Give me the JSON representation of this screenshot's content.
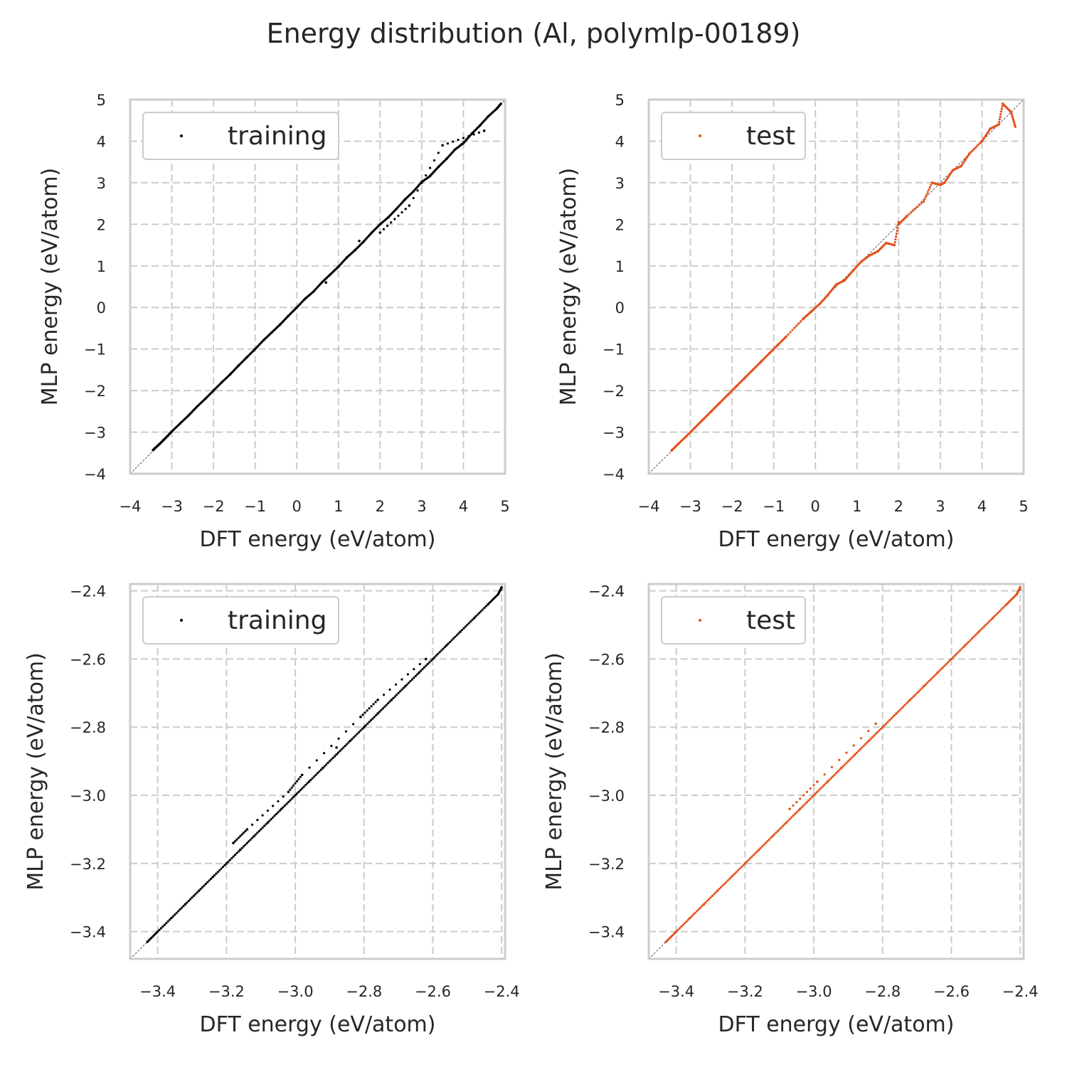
{
  "figure": {
    "title": "Energy distribution (Al, polymlp-00189)",
    "colors": {
      "training": "#000000",
      "test": "#e6501a",
      "grid": "#cccccc",
      "diagonal": "#555555"
    }
  },
  "chart_data": [
    {
      "type": "scatter",
      "xlabel": "DFT energy (eV/atom)",
      "ylabel": "MLP energy (eV/atom)",
      "xlim": [
        -4,
        5
      ],
      "ylim": [
        -4,
        5
      ],
      "xticks": [
        -4,
        -3,
        -2,
        -1,
        0,
        1,
        2,
        3,
        4,
        5
      ],
      "yticks": [
        -4,
        -3,
        -2,
        -1,
        0,
        1,
        2,
        3,
        4,
        5
      ],
      "xtick_labels": [
        "−4",
        "−3",
        "−2",
        "−1",
        "0",
        "1",
        "2",
        "3",
        "4",
        "5"
      ],
      "ytick_labels": [
        "−4",
        "−3",
        "−2",
        "−1",
        "0",
        "1",
        "2",
        "3",
        "4",
        "5"
      ],
      "grid": true,
      "legend": "top-left",
      "reference_line": "y = x",
      "series": [
        {
          "name": "training",
          "color": "#000000",
          "x": [
            -3.45,
            -3.4,
            -3.3,
            -3.2,
            -3.1,
            -3.0,
            -2.8,
            -2.6,
            -2.4,
            -2.2,
            -2.0,
            -1.8,
            -1.6,
            -1.4,
            -1.2,
            -1.0,
            -0.8,
            -0.6,
            -0.4,
            -0.2,
            0.0,
            0.2,
            0.4,
            0.6,
            0.8,
            1.0,
            1.2,
            1.4,
            1.6,
            1.8,
            2.0,
            2.2,
            2.4,
            2.6,
            2.8,
            3.0,
            3.2,
            3.4,
            3.6,
            3.8,
            4.0,
            4.2,
            4.4,
            4.6,
            4.8,
            4.9,
            2.0,
            2.7,
            3.5,
            4.5,
            1.5,
            0.7
          ],
          "y": [
            -3.43,
            -3.38,
            -3.29,
            -3.19,
            -3.09,
            -2.98,
            -2.79,
            -2.6,
            -2.39,
            -2.2,
            -2.0,
            -1.8,
            -1.61,
            -1.4,
            -1.2,
            -1.0,
            -0.79,
            -0.6,
            -0.41,
            -0.2,
            0.0,
            0.21,
            0.38,
            0.6,
            0.79,
            0.98,
            1.2,
            1.38,
            1.58,
            1.8,
            2.0,
            2.17,
            2.38,
            2.6,
            2.79,
            3.02,
            3.16,
            3.38,
            3.58,
            3.8,
            3.95,
            4.18,
            4.38,
            4.6,
            4.78,
            4.9,
            1.8,
            2.45,
            3.9,
            4.25,
            1.6,
            0.6
          ]
        }
      ]
    },
    {
      "type": "scatter",
      "xlabel": "DFT energy (eV/atom)",
      "ylabel": "MLP energy (eV/atom)",
      "xlim": [
        -4,
        5
      ],
      "ylim": [
        -4,
        5
      ],
      "xticks": [
        -4,
        -3,
        -2,
        -1,
        0,
        1,
        2,
        3,
        4,
        5
      ],
      "yticks": [
        -4,
        -3,
        -2,
        -1,
        0,
        1,
        2,
        3,
        4,
        5
      ],
      "xtick_labels": [
        "−4",
        "−3",
        "−2",
        "−1",
        "0",
        "1",
        "2",
        "3",
        "4",
        "5"
      ],
      "ytick_labels": [
        "−4",
        "−3",
        "−2",
        "−1",
        "0",
        "1",
        "2",
        "3",
        "4",
        "5"
      ],
      "grid": true,
      "legend": "top-left",
      "reference_line": "y = x",
      "series": [
        {
          "name": "test",
          "color": "#e6501a",
          "x": [
            -3.45,
            -3.3,
            -3.1,
            -2.9,
            -2.7,
            -2.5,
            -2.3,
            -2.1,
            -1.9,
            -1.7,
            -1.5,
            -1.3,
            -1.1,
            -0.9,
            -0.7,
            -0.3,
            -0.1,
            0.1,
            0.3,
            0.5,
            0.7,
            0.9,
            1.1,
            1.3,
            1.5,
            1.7,
            1.9,
            2.0,
            2.0,
            2.2,
            2.6,
            2.8,
            3.0,
            3.1,
            3.3,
            3.5,
            3.7,
            4.0,
            4.2,
            4.4,
            4.5,
            4.7,
            4.8
          ],
          "y": [
            -3.44,
            -3.29,
            -3.1,
            -2.9,
            -2.7,
            -2.5,
            -2.3,
            -2.1,
            -1.9,
            -1.7,
            -1.5,
            -1.3,
            -1.1,
            -0.9,
            -0.7,
            -0.28,
            -0.1,
            0.08,
            0.3,
            0.55,
            0.65,
            0.88,
            1.1,
            1.25,
            1.35,
            1.55,
            1.5,
            2.05,
            2.0,
            2.2,
            2.55,
            3.0,
            2.95,
            3.0,
            3.3,
            3.4,
            3.7,
            4.0,
            4.3,
            4.4,
            4.9,
            4.7,
            4.35
          ]
        }
      ]
    },
    {
      "type": "scatter",
      "xlabel": "DFT energy (eV/atom)",
      "ylabel": "MLP energy (eV/atom)",
      "xlim": [
        -3.48,
        -2.39
      ],
      "ylim": [
        -3.48,
        -2.38
      ],
      "xticks": [
        -3.4,
        -3.2,
        -3.0,
        -2.8,
        -2.6,
        -2.4
      ],
      "yticks": [
        -3.4,
        -3.2,
        -3.0,
        -2.8,
        -2.6,
        -2.4
      ],
      "xtick_labels": [
        "−3.4",
        "−3.2",
        "−3.0",
        "−2.8",
        "−2.6",
        "−2.4"
      ],
      "ytick_labels": [
        "−3.4",
        "−3.2",
        "−3.0",
        "−2.8",
        "−2.6",
        "−2.4"
      ],
      "grid": true,
      "legend": "top-left",
      "reference_line": "y = x",
      "series": [
        {
          "name": "training",
          "color": "#000000",
          "x": [
            -3.43,
            -3.4,
            -3.36,
            -3.32,
            -3.28,
            -3.24,
            -3.2,
            -3.16,
            -3.12,
            -3.08,
            -3.04,
            -3.0,
            -2.96,
            -2.92,
            -2.88,
            -2.84,
            -2.8,
            -2.76,
            -2.72,
            -2.68,
            -2.64,
            -2.6,
            -2.56,
            -2.52,
            -2.48,
            -2.44,
            -2.41,
            -2.4,
            -3.18,
            -3.14,
            -3.02,
            -2.98,
            -2.81,
            -2.76,
            -2.62,
            -2.88
          ],
          "y": [
            -3.43,
            -3.4,
            -3.36,
            -3.32,
            -3.28,
            -3.24,
            -3.2,
            -3.16,
            -3.12,
            -3.08,
            -3.04,
            -3.0,
            -2.96,
            -2.92,
            -2.88,
            -2.84,
            -2.8,
            -2.76,
            -2.72,
            -2.68,
            -2.64,
            -2.6,
            -2.56,
            -2.52,
            -2.48,
            -2.44,
            -2.41,
            -2.39,
            -3.14,
            -3.1,
            -2.99,
            -2.94,
            -2.77,
            -2.72,
            -2.6,
            -2.86
          ]
        }
      ]
    },
    {
      "type": "scatter",
      "xlabel": "DFT energy (eV/atom)",
      "ylabel": "MLP energy (eV/atom)",
      "xlim": [
        -3.48,
        -2.39
      ],
      "ylim": [
        -3.48,
        -2.38
      ],
      "xticks": [
        -3.4,
        -3.2,
        -3.0,
        -2.8,
        -2.6,
        -2.4
      ],
      "yticks": [
        -3.4,
        -3.2,
        -3.0,
        -2.8,
        -2.6,
        -2.4
      ],
      "xtick_labels": [
        "−3.4",
        "−3.2",
        "−3.0",
        "−2.8",
        "−2.6",
        "−2.4"
      ],
      "ytick_labels": [
        "−3.4",
        "−3.2",
        "−3.0",
        "−2.8",
        "−2.6",
        "−2.4"
      ],
      "grid": true,
      "legend": "top-left",
      "reference_line": "y = x",
      "series": [
        {
          "name": "test",
          "color": "#e6501a",
          "x": [
            -3.43,
            -3.4,
            -3.36,
            -3.32,
            -3.28,
            -3.24,
            -3.2,
            -3.16,
            -3.12,
            -3.08,
            -3.04,
            -3.0,
            -2.96,
            -2.92,
            -2.88,
            -2.84,
            -2.8,
            -2.76,
            -2.72,
            -2.68,
            -2.64,
            -2.6,
            -2.56,
            -2.52,
            -2.48,
            -2.44,
            -2.41,
            -2.4,
            -3.07,
            -2.99,
            -2.82
          ],
          "y": [
            -3.43,
            -3.4,
            -3.36,
            -3.32,
            -3.28,
            -3.24,
            -3.2,
            -3.16,
            -3.12,
            -3.08,
            -3.04,
            -3.0,
            -2.96,
            -2.92,
            -2.88,
            -2.84,
            -2.8,
            -2.76,
            -2.72,
            -2.68,
            -2.64,
            -2.6,
            -2.56,
            -2.52,
            -2.48,
            -2.44,
            -2.41,
            -2.39,
            -3.04,
            -2.96,
            -2.79
          ]
        }
      ]
    }
  ]
}
